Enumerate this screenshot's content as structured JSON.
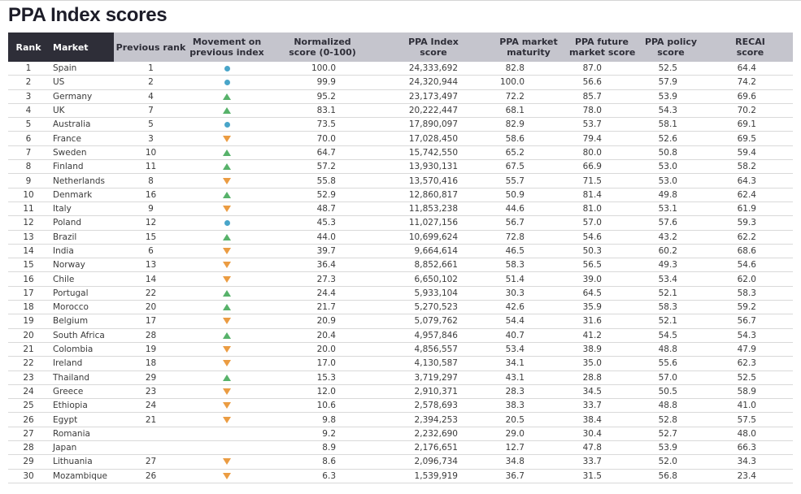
{
  "page": {
    "title": "PPA Index scores"
  },
  "colors": {
    "header_dark": "#2e2e38",
    "header_gray": "#c5c5cd",
    "movement_up": "#57b26a",
    "movement_down": "#eb9c42",
    "movement_same": "#49a5c9"
  },
  "movement_icons": {
    "up": "triangle-up-icon",
    "down": "triangle-down-icon",
    "same": "circle-icon",
    "none": ""
  },
  "chart_data": {
    "type": "table",
    "title": "PPA Index scores",
    "columns": [
      {
        "id": "rank",
        "lines": [
          "Rank"
        ],
        "dark": true
      },
      {
        "id": "market",
        "lines": [
          "Market"
        ],
        "dark": true
      },
      {
        "id": "previous_rank",
        "lines": [
          "Previous rank"
        ],
        "dark": false
      },
      {
        "id": "movement",
        "lines": [
          "Movement on",
          "previous index"
        ],
        "dark": false
      },
      {
        "id": "normalized",
        "lines": [
          "Normalized",
          "score (0-100)"
        ],
        "dark": false
      },
      {
        "id": "ppa_index",
        "lines": [
          "PPA Index",
          "score"
        ],
        "dark": false
      },
      {
        "id": "maturity",
        "lines": [
          "PPA market",
          "maturity"
        ],
        "dark": false
      },
      {
        "id": "future",
        "lines": [
          "PPA future",
          "market score"
        ],
        "dark": false
      },
      {
        "id": "policy",
        "lines": [
          "PPA policy",
          "score"
        ],
        "dark": false
      },
      {
        "id": "recai",
        "lines": [
          "RECAI",
          "score"
        ],
        "dark": false
      }
    ],
    "rows": [
      {
        "rank": "1",
        "market": "Spain",
        "previous_rank": "1",
        "movement": "same",
        "normalized": "100.0",
        "ppa_index": "24,333,692",
        "maturity": "82.8",
        "future": "87.0",
        "policy": "52.5",
        "recai": "64.4"
      },
      {
        "rank": "2",
        "market": "US",
        "previous_rank": "2",
        "movement": "same",
        "normalized": "99.9",
        "ppa_index": "24,320,944",
        "maturity": "100.0",
        "future": "56.6",
        "policy": "57.9",
        "recai": "74.2"
      },
      {
        "rank": "3",
        "market": "Germany",
        "previous_rank": "4",
        "movement": "up",
        "normalized": "95.2",
        "ppa_index": "23,173,497",
        "maturity": "72.2",
        "future": "85.7",
        "policy": "53.9",
        "recai": "69.6"
      },
      {
        "rank": "4",
        "market": "UK",
        "previous_rank": "7",
        "movement": "up",
        "normalized": "83.1",
        "ppa_index": "20,222,447",
        "maturity": "68.1",
        "future": "78.0",
        "policy": "54.3",
        "recai": "70.2"
      },
      {
        "rank": "5",
        "market": "Australia",
        "previous_rank": "5",
        "movement": "same",
        "normalized": "73.5",
        "ppa_index": "17,890,097",
        "maturity": "82.9",
        "future": "53.7",
        "policy": "58.1",
        "recai": "69.1"
      },
      {
        "rank": "6",
        "market": "France",
        "previous_rank": "3",
        "movement": "down",
        "normalized": "70.0",
        "ppa_index": "17,028,450",
        "maturity": "58.6",
        "future": "79.4",
        "policy": "52.6",
        "recai": "69.5"
      },
      {
        "rank": "7",
        "market": "Sweden",
        "previous_rank": "10",
        "movement": "up",
        "normalized": "64.7",
        "ppa_index": "15,742,550",
        "maturity": "65.2",
        "future": "80.0",
        "policy": "50.8",
        "recai": "59.4"
      },
      {
        "rank": "8",
        "market": "Finland",
        "previous_rank": "11",
        "movement": "up",
        "normalized": "57.2",
        "ppa_index": "13,930,131",
        "maturity": "67.5",
        "future": "66.9",
        "policy": "53.0",
        "recai": "58.2"
      },
      {
        "rank": "9",
        "market": "Netherlands",
        "previous_rank": "8",
        "movement": "down",
        "normalized": "55.8",
        "ppa_index": "13,570,416",
        "maturity": "55.7",
        "future": "71.5",
        "policy": "53.0",
        "recai": "64.3"
      },
      {
        "rank": "10",
        "market": "Denmark",
        "previous_rank": "16",
        "movement": "up",
        "normalized": "52.9",
        "ppa_index": "12,860,817",
        "maturity": "50.9",
        "future": "81.4",
        "policy": "49.8",
        "recai": "62.4"
      },
      {
        "rank": "11",
        "market": "Italy",
        "previous_rank": "9",
        "movement": "down",
        "normalized": "48.7",
        "ppa_index": "11,853,238",
        "maturity": "44.6",
        "future": "81.0",
        "policy": "53.1",
        "recai": "61.9"
      },
      {
        "rank": "12",
        "market": "Poland",
        "previous_rank": "12",
        "movement": "same",
        "normalized": "45.3",
        "ppa_index": "11,027,156",
        "maturity": "56.7",
        "future": "57.0",
        "policy": "57.6",
        "recai": "59.3"
      },
      {
        "rank": "13",
        "market": "Brazil",
        "previous_rank": "15",
        "movement": "up",
        "normalized": "44.0",
        "ppa_index": "10,699,624",
        "maturity": "72.8",
        "future": "54.6",
        "policy": "43.2",
        "recai": "62.2"
      },
      {
        "rank": "14",
        "market": "India",
        "previous_rank": "6",
        "movement": "down",
        "normalized": "39.7",
        "ppa_index": "9,664,614",
        "maturity": "46.5",
        "future": "50.3",
        "policy": "60.2",
        "recai": "68.6"
      },
      {
        "rank": "15",
        "market": "Norway",
        "previous_rank": "13",
        "movement": "down",
        "normalized": "36.4",
        "ppa_index": "8,852,661",
        "maturity": "58.3",
        "future": "56.5",
        "policy": "49.3",
        "recai": "54.6"
      },
      {
        "rank": "16",
        "market": "Chile",
        "previous_rank": "14",
        "movement": "down",
        "normalized": "27.3",
        "ppa_index": "6,650,102",
        "maturity": "51.4",
        "future": "39.0",
        "policy": "53.4",
        "recai": "62.0"
      },
      {
        "rank": "17",
        "market": "Portugal",
        "previous_rank": "22",
        "movement": "up",
        "normalized": "24.4",
        "ppa_index": "5,933,104",
        "maturity": "30.3",
        "future": "64.5",
        "policy": "52.1",
        "recai": "58.3"
      },
      {
        "rank": "18",
        "market": "Morocco",
        "previous_rank": "20",
        "movement": "up",
        "normalized": "21.7",
        "ppa_index": "5,270,523",
        "maturity": "42.6",
        "future": "35.9",
        "policy": "58.3",
        "recai": "59.2"
      },
      {
        "rank": "19",
        "market": "Belgium",
        "previous_rank": "17",
        "movement": "down",
        "normalized": "20.9",
        "ppa_index": "5,079,762",
        "maturity": "54.4",
        "future": "31.6",
        "policy": "52.1",
        "recai": "56.7"
      },
      {
        "rank": "20",
        "market": "South Africa",
        "previous_rank": "28",
        "movement": "up",
        "normalized": "20.4",
        "ppa_index": "4,957,846",
        "maturity": "40.7",
        "future": "41.2",
        "policy": "54.5",
        "recai": "54.3"
      },
      {
        "rank": "21",
        "market": "Colombia",
        "previous_rank": "19",
        "movement": "down",
        "normalized": "20.0",
        "ppa_index": "4,856,557",
        "maturity": "53.4",
        "future": "38.9",
        "policy": "48.8",
        "recai": "47.9"
      },
      {
        "rank": "22",
        "market": "Ireland",
        "previous_rank": "18",
        "movement": "down",
        "normalized": "17.0",
        "ppa_index": "4,130,587",
        "maturity": "34.1",
        "future": "35.0",
        "policy": "55.6",
        "recai": "62.3"
      },
      {
        "rank": "23",
        "market": "Thailand",
        "previous_rank": "29",
        "movement": "up",
        "normalized": "15.3",
        "ppa_index": "3,719,297",
        "maturity": "43.1",
        "future": "28.8",
        "policy": "57.0",
        "recai": "52.5"
      },
      {
        "rank": "24",
        "market": "Greece",
        "previous_rank": "23",
        "movement": "down",
        "normalized": "12.0",
        "ppa_index": "2,910,371",
        "maturity": "28.3",
        "future": "34.5",
        "policy": "50.5",
        "recai": "58.9"
      },
      {
        "rank": "25",
        "market": "Ethiopia",
        "previous_rank": "24",
        "movement": "down",
        "normalized": "10.6",
        "ppa_index": "2,578,693",
        "maturity": "38.3",
        "future": "33.7",
        "policy": "48.8",
        "recai": "41.0"
      },
      {
        "rank": "26",
        "market": "Egypt",
        "previous_rank": "21",
        "movement": "down",
        "normalized": "9.8",
        "ppa_index": "2,394,253",
        "maturity": "20.5",
        "future": "38.4",
        "policy": "52.8",
        "recai": "57.5"
      },
      {
        "rank": "27",
        "market": "Romania",
        "previous_rank": "",
        "movement": "none",
        "normalized": "9.2",
        "ppa_index": "2,232,690",
        "maturity": "29.0",
        "future": "30.4",
        "policy": "52.7",
        "recai": "48.0"
      },
      {
        "rank": "28",
        "market": "Japan",
        "previous_rank": "",
        "movement": "none",
        "normalized": "8.9",
        "ppa_index": "2,176,651",
        "maturity": "12.7",
        "future": "47.8",
        "policy": "53.9",
        "recai": "66.3"
      },
      {
        "rank": "29",
        "market": "Lithuania",
        "previous_rank": "27",
        "movement": "down",
        "normalized": "8.6",
        "ppa_index": "2,096,734",
        "maturity": "34.8",
        "future": "33.7",
        "policy": "52.0",
        "recai": "34.3"
      },
      {
        "rank": "30",
        "market": "Mozambique",
        "previous_rank": "26",
        "movement": "down",
        "normalized": "6.3",
        "ppa_index": "1,539,919",
        "maturity": "36.7",
        "future": "31.5",
        "policy": "56.8",
        "recai": "23.4"
      }
    ]
  }
}
